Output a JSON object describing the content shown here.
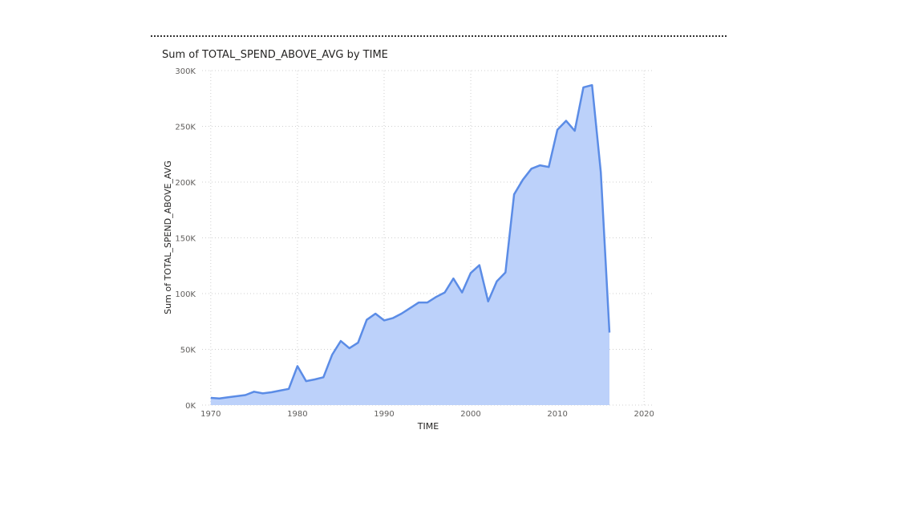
{
  "visual": {
    "title": "Sum of TOTAL_SPEND_ABOVE_AVG by TIME"
  },
  "colors": {
    "line": "#5b8ce6",
    "area": "#bcd1fa",
    "grid": "#cfcfcf",
    "rule": "#333333"
  },
  "chart_data": {
    "type": "area",
    "title": "Sum of TOTAL_SPEND_ABOVE_AVG by TIME",
    "xlabel": "TIME",
    "ylabel": "Sum of TOTAL_SPEND_ABOVE_AVG",
    "xlim": [
      1969,
      2021
    ],
    "ylim": [
      0,
      300000
    ],
    "x_ticks": [
      1970,
      1980,
      1990,
      2000,
      2010,
      2020
    ],
    "y_ticks": [
      0,
      50000,
      100000,
      150000,
      200000,
      250000,
      300000
    ],
    "y_tick_labels": [
      "0K",
      "50K",
      "100K",
      "150K",
      "200K",
      "250K",
      "300K"
    ],
    "grid": true,
    "series": [
      {
        "x": [
          1970,
          1971,
          1972,
          1973,
          1974,
          1975,
          1976,
          1977,
          1978,
          1979,
          1980,
          1981,
          1982,
          1983,
          1984,
          1985,
          1986,
          1987,
          1988,
          1989,
          1990,
          1991,
          1992,
          1993,
          1994,
          1995,
          1996,
          1997,
          1998,
          1999,
          2000,
          2001,
          2002,
          2003,
          2004,
          2005,
          2006,
          2007,
          2008,
          2009,
          2010,
          2011,
          2012,
          2013,
          2014,
          2015,
          2016
        ],
        "values": [
          6500,
          6000,
          7000,
          8000,
          9000,
          12000,
          10500,
          11500,
          13000,
          14500,
          35000,
          21500,
          23000,
          25000,
          45000,
          57500,
          51000,
          56000,
          76500,
          82000,
          76000,
          78000,
          82000,
          87000,
          92000,
          92000,
          97000,
          101000,
          113500,
          101000,
          118500,
          125500,
          93000,
          111000,
          119000,
          189000,
          202000,
          212000,
          215000,
          213500,
          247000,
          255000,
          246000,
          285000,
          287000,
          209000,
          65000
        ]
      }
    ]
  }
}
